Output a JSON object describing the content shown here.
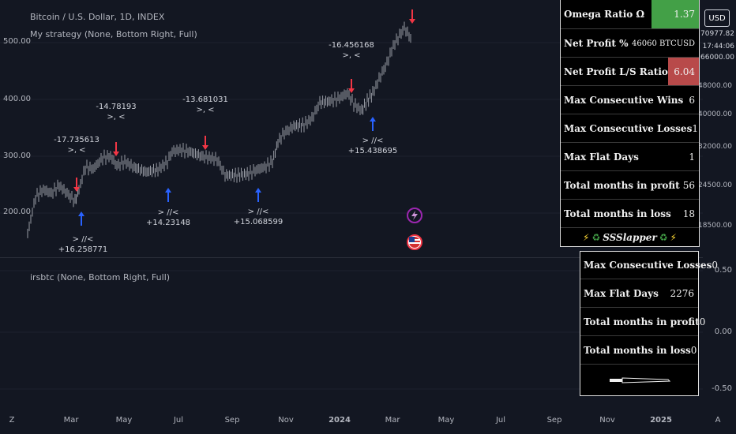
{
  "chart_header": {
    "symbol_title": "Bitcoin / U.S. Dollar, 1D, INDEX",
    "strategy_legend": "My strategy (None, Bottom Right, Full)",
    "indicator_legend": "irsbtc (None, Bottom Right, Full)"
  },
  "left_axis": {
    "labels": [
      "500.00",
      "400.00",
      "300.00",
      "200.00"
    ]
  },
  "right_axis": {
    "currency_button": "USD",
    "price_box_1": "70977.82",
    "price_box_2": "17:44:06",
    "price_box_3": "66000.00",
    "labels": [
      "48000.00",
      "40000.00",
      "32000.00",
      "24500.00",
      "18500.00"
    ],
    "bottom_labels": [
      "0.50",
      "0.00",
      "-0.50"
    ]
  },
  "x_axis": {
    "labels": [
      {
        "text": "Z",
        "bold": false
      },
      {
        "text": "Mar",
        "bold": false
      },
      {
        "text": "May",
        "bold": false
      },
      {
        "text": "Jul",
        "bold": false
      },
      {
        "text": "Sep",
        "bold": false
      },
      {
        "text": "Nov",
        "bold": false
      },
      {
        "text": "2024",
        "bold": true
      },
      {
        "text": "Mar",
        "bold": false
      },
      {
        "text": "May",
        "bold": false
      },
      {
        "text": "Jul",
        "bold": false
      },
      {
        "text": "Sep",
        "bold": false
      },
      {
        "text": "Nov",
        "bold": false
      },
      {
        "text": "2025",
        "bold": true
      },
      {
        "text": "A",
        "bold": false
      }
    ]
  },
  "annotations": {
    "a1": {
      "line1": "-17.735613",
      "line2": ">, <"
    },
    "a2": {
      "line1": "-14.78193",
      "line2": ">, <"
    },
    "a3": {
      "line1": "-13.681031",
      "line2": ">, <"
    },
    "a4": {
      "line1": "-16.456168",
      "line2": ">, <"
    },
    "b1": {
      "line1": "> //<",
      "line2": "+16.258771"
    },
    "b2": {
      "line1": "> //<",
      "line2": "+14.23148"
    },
    "b3": {
      "line1": "> //<",
      "line2": "+15.068599"
    },
    "b4": {
      "line1": "> //<",
      "line2": "+15.438695"
    }
  },
  "stats_table": {
    "rows": [
      {
        "label": "Omega Ratio Ω",
        "value": "1.37",
        "color": "#43a047"
      },
      {
        "label": "Net Profit %",
        "value": "46060 BTCUSD",
        "color": "#000000"
      },
      {
        "label": "Net Profit L/S Ratio",
        "value": "6.04",
        "color": "#b84a4a"
      },
      {
        "label": "Max Consecutive Wins",
        "value": "6",
        "color": "#000000"
      },
      {
        "label": "Max Consecutive Losses",
        "value": "1",
        "color": "#000000"
      },
      {
        "label": "Max Flat Days",
        "value": "1",
        "color": "#000000"
      },
      {
        "label": "Total months in profit",
        "value": "56",
        "color": "#000000"
      },
      {
        "label": "Total months in loss",
        "value": "18",
        "color": "#000000"
      }
    ],
    "footer": "SSSlapper"
  },
  "indicator_table": {
    "rows": [
      {
        "label": "Max Consecutive Losses",
        "value": "0"
      },
      {
        "label": "Max Flat Days",
        "value": "2276"
      },
      {
        "label": "Total months in profit",
        "value": "0"
      },
      {
        "label": "Total months in loss",
        "value": "0"
      }
    ]
  },
  "colors": {
    "background": "#131722",
    "buy_arrow": "#2962ff",
    "sell_arrow": "#f23645",
    "candle": "#d1d4dc"
  }
}
